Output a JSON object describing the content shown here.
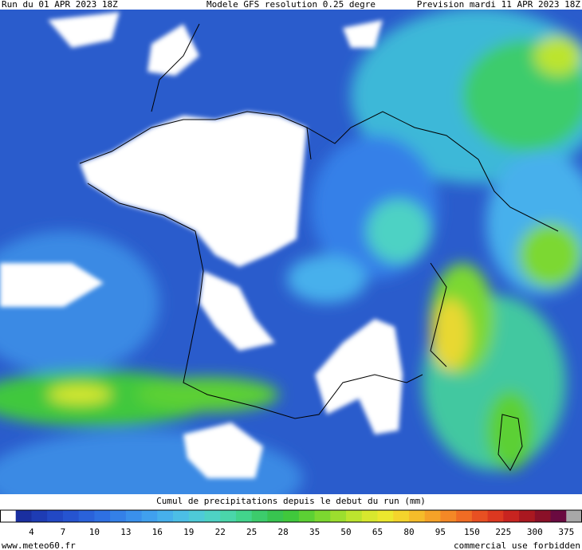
{
  "header": {
    "run": "Run du 01 APR 2023 18Z",
    "model": "Modele GFS resolution 0.25 degre",
    "forecast": "Prevision mardi 11 APR 2023 18Z"
  },
  "legend": {
    "title": "Cumul de precipitations depuis le debut du run (mm)",
    "colors": [
      "#ffffff",
      "#1a2fa0",
      "#1e3cb4",
      "#2248c4",
      "#2654d0",
      "#2a62da",
      "#2e70e2",
      "#3480e8",
      "#3a90ec",
      "#40a0ee",
      "#46b0ec",
      "#4cbee6",
      "#4ecad8",
      "#4ed2c4",
      "#4ad6aa",
      "#42d48c",
      "#3ccc6c",
      "#38c450",
      "#40c83c",
      "#5cd034",
      "#7cd830",
      "#9cde2e",
      "#bce42e",
      "#d8e82e",
      "#ece82e",
      "#f4d42c",
      "#f6bc2a",
      "#f6a228",
      "#f48826",
      "#f06c24",
      "#e85022",
      "#dc3820",
      "#c82420",
      "#aa1820",
      "#8a1028",
      "#6a0a40",
      "#a8a8a8"
    ],
    "labels": [
      4,
      7,
      10,
      13,
      16,
      19,
      22,
      25,
      28,
      35,
      50,
      65,
      80,
      95,
      150,
      225,
      300,
      375
    ]
  },
  "footer": {
    "site": "www.meteo60.fr",
    "notice": "commercial use forbidden"
  }
}
